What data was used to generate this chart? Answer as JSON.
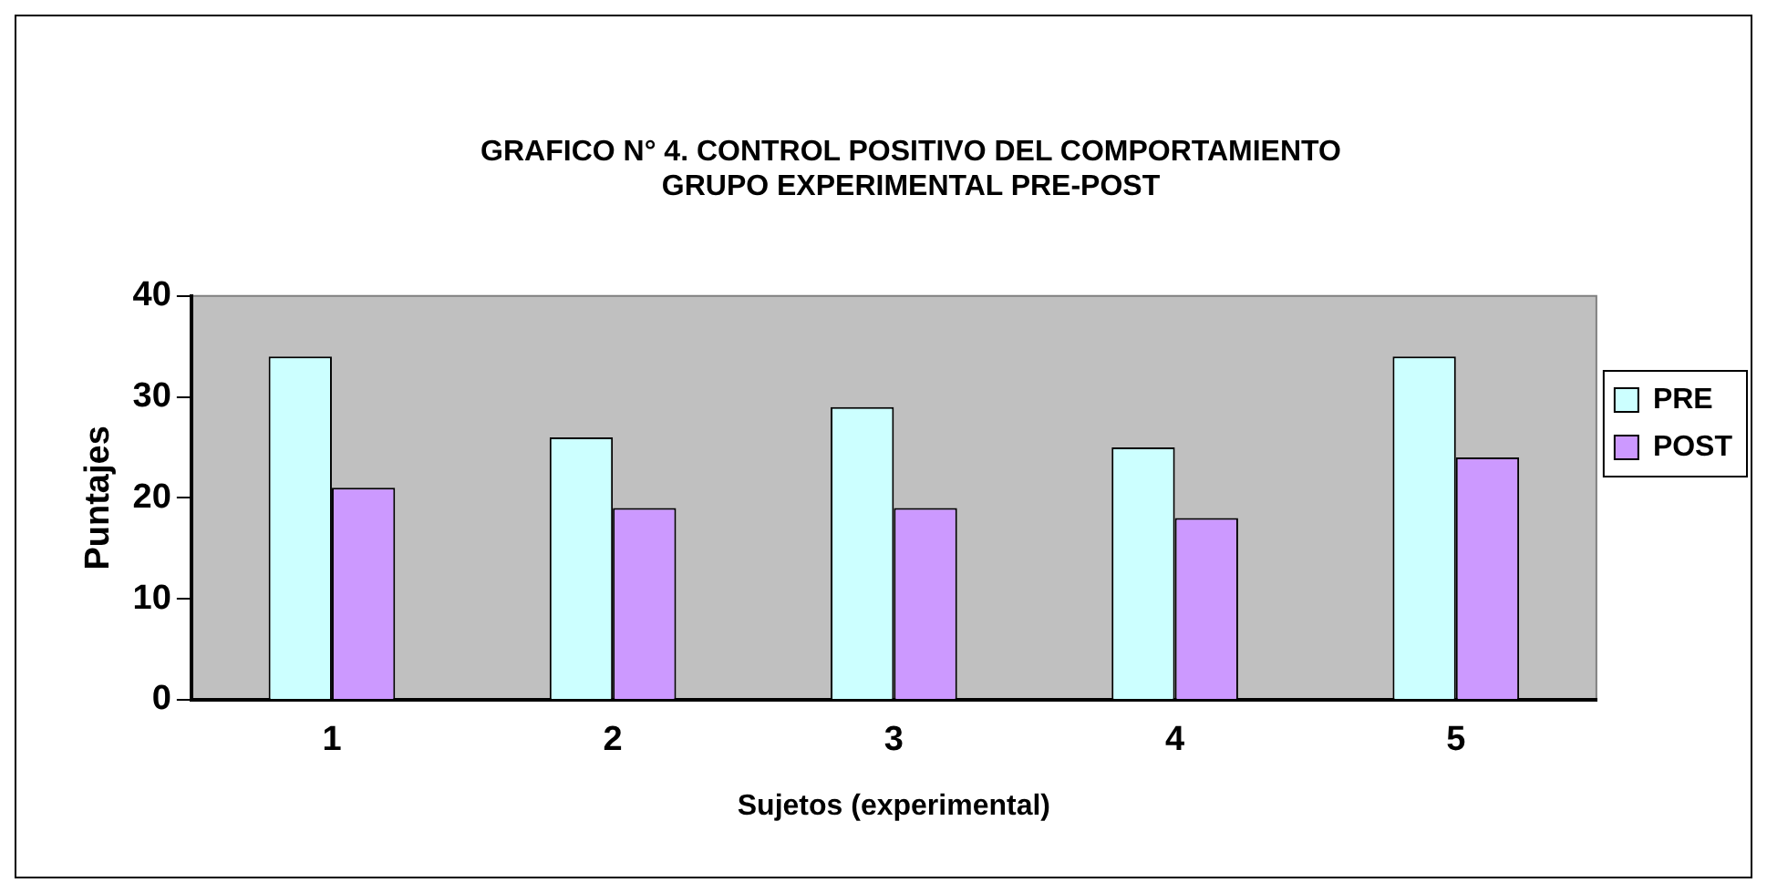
{
  "chart_data": {
    "type": "bar",
    "title": [
      "GRAFICO N° 4. CONTROL POSITIVO DEL COMPORTAMIENTO",
      "GRUPO EXPERIMENTAL PRE-POST"
    ],
    "xlabel": "Sujetos (experimental)",
    "ylabel": "Puntajes",
    "categories": [
      "1",
      "2",
      "3",
      "4",
      "5"
    ],
    "series": [
      {
        "name": "PRE",
        "color": "#ccffff",
        "values": [
          34,
          26,
          29,
          25,
          34
        ]
      },
      {
        "name": "POST",
        "color": "#cc99ff",
        "values": [
          21,
          19,
          19,
          18,
          24
        ]
      }
    ],
    "ylim": [
      0,
      40
    ],
    "yticks": [
      0,
      10,
      20,
      30,
      40
    ],
    "grid": false,
    "legend": "right"
  }
}
